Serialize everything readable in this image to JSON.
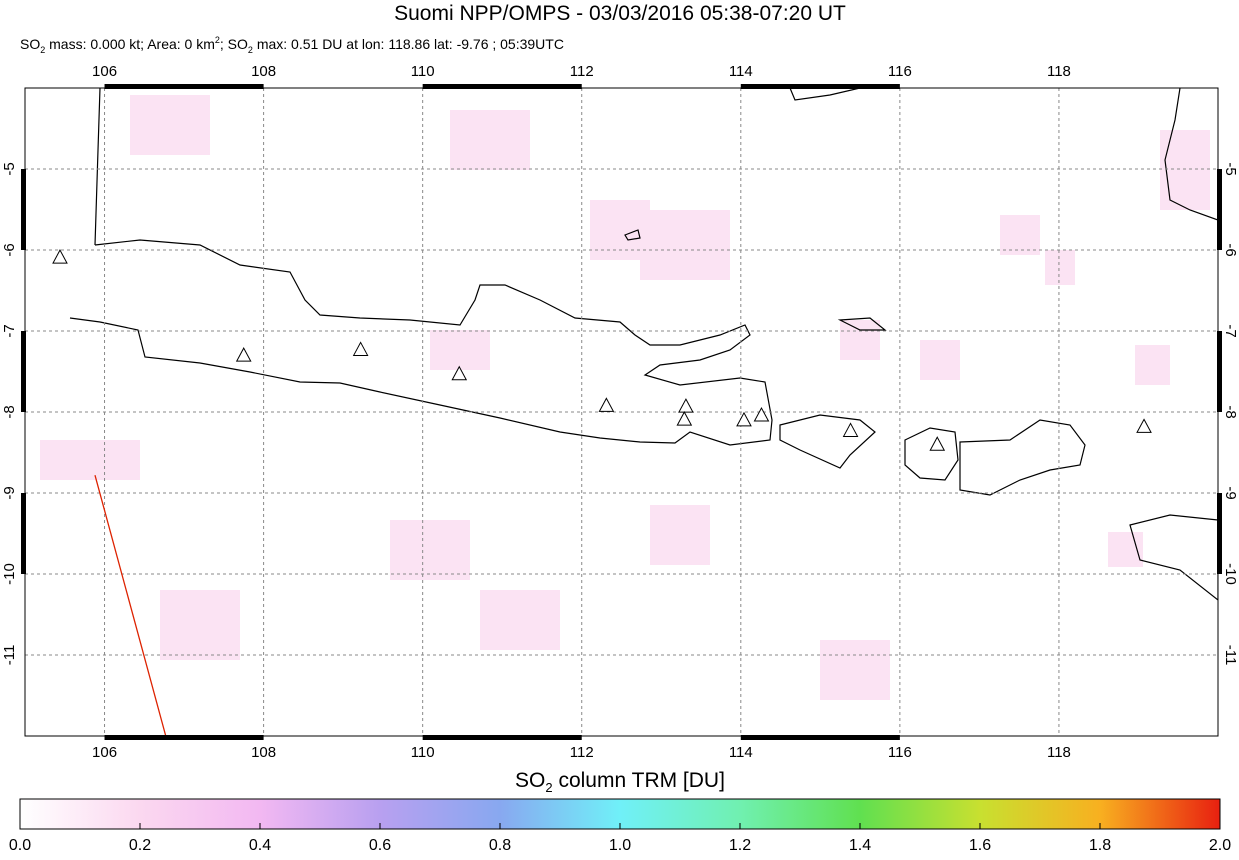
{
  "chart_data": {
    "type": "map",
    "title": "Suomi NPP/OMPS - 03/03/2016 05:38-07:20 UT",
    "subtitle": [
      "SO",
      "2",
      " mass: 0.000 kt; Area: 0 km",
      "2",
      "; SO",
      "2",
      " max: 0.51 DU at lon: 118.86 lat: -9.76 ; 05:39UTC"
    ],
    "xlim": [
      105,
      120
    ],
    "ylim": [
      -12,
      -4
    ],
    "xticks": [
      106,
      108,
      110,
      112,
      114,
      116,
      118
    ],
    "yticks": [
      -5,
      -6,
      -7,
      -8,
      -9,
      -10,
      -11
    ],
    "grid": true,
    "volcanoes": {
      "lon": [
        105.44,
        107.75,
        109.22,
        110.46,
        112.31,
        113.31,
        113.29,
        114.04,
        114.26,
        115.38,
        116.47,
        119.07
      ],
      "lat": [
        -6.1,
        -7.31,
        -7.24,
        -7.54,
        -7.93,
        -7.94,
        -8.1,
        -8.11,
        -8.05,
        -8.24,
        -8.41,
        -8.19
      ]
    },
    "orbit_edge": {
      "lon": [
        105.88,
        106.77
      ],
      "lat": [
        -8.78,
        -12
      ],
      "color": "#dd2200"
    },
    "colorbar": {
      "title": [
        "SO",
        "2",
        " column TRM [DU]"
      ],
      "lim": [
        0,
        2
      ],
      "ticks": [
        {
          "value": 0,
          "label": "0.0"
        },
        0.2,
        0.4,
        0.6,
        0.8,
        {
          "value": 1,
          "label": "1.0"
        },
        1.2,
        1.4,
        1.6,
        1.8,
        {
          "value": 2,
          "label": "2.0"
        }
      ]
    }
  }
}
